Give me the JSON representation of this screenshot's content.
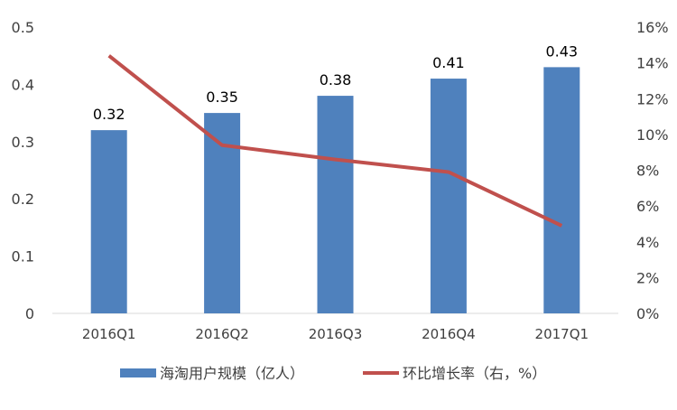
{
  "chart_data": {
    "type": "bar+line",
    "title": "",
    "categories": [
      "2016Q1",
      "2016Q2",
      "2016Q3",
      "2016Q4",
      "2017Q1"
    ],
    "series": [
      {
        "name": "海淘用户规模（亿人）",
        "type": "bar",
        "axis": "left",
        "color": "#4F81BD",
        "values": [
          0.32,
          0.35,
          0.38,
          0.41,
          0.43
        ],
        "labels": [
          "0.32",
          "0.35",
          "0.38",
          "0.41",
          "0.43"
        ]
      },
      {
        "name": "环比增长率（右，%）",
        "type": "line",
        "axis": "right",
        "color": "#C0504D",
        "values": [
          14.4,
          9.4,
          8.6,
          7.9,
          4.9
        ]
      }
    ],
    "left_axis": {
      "ylim": [
        0,
        0.5
      ],
      "ticks": [
        "0",
        "0.1",
        "0.2",
        "0.3",
        "0.4",
        "0.5"
      ],
      "tick_values": [
        0,
        0.1,
        0.2,
        0.3,
        0.4,
        0.5
      ]
    },
    "right_axis": {
      "ylim": [
        0,
        16
      ],
      "ticks": [
        "0%",
        "2%",
        "4%",
        "6%",
        "8%",
        "10%",
        "12%",
        "14%",
        "16%"
      ],
      "tick_values": [
        0,
        2,
        4,
        6,
        8,
        10,
        12,
        14,
        16
      ]
    },
    "grid": false,
    "legend": "bottom"
  }
}
